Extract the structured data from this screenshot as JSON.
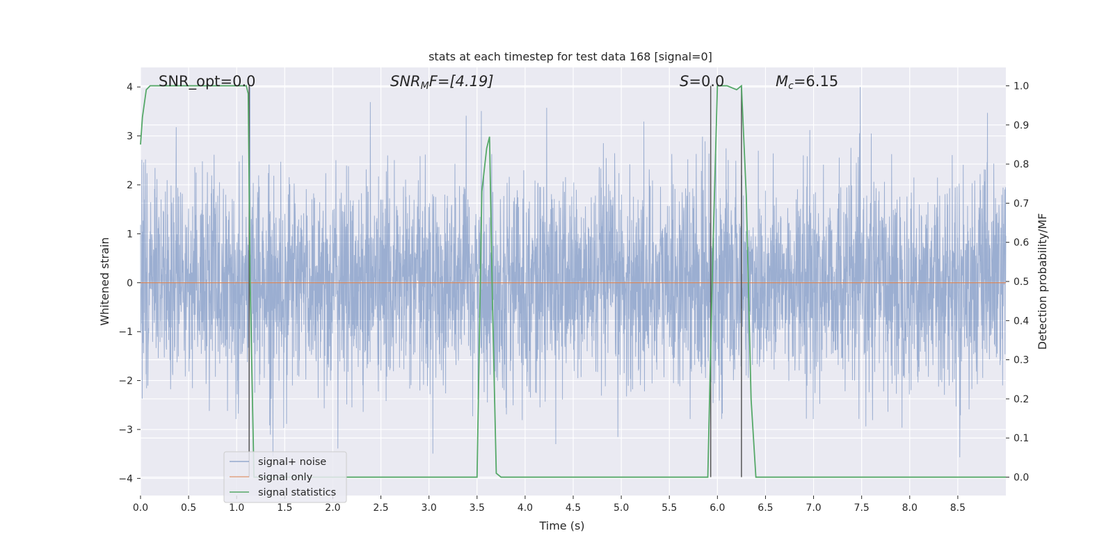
{
  "chart_data": {
    "type": "line",
    "title": "stats at each timestep for test data 168 [signal=0]",
    "xlabel": "Time (s)",
    "ylabel_left": "Whitened strain",
    "ylabel_right": "Detection probability/MF",
    "xlim": [
      0,
      9.0
    ],
    "ylim_left": [
      -4.35,
      4.4
    ],
    "ylim_right": [
      -0.047,
      1.047
    ],
    "x_ticks": [
      "0.0",
      "0.5",
      "1.0",
      "1.5",
      "2.0",
      "2.5",
      "3.0",
      "3.5",
      "4.0",
      "4.5",
      "5.0",
      "5.5",
      "6.0",
      "6.5",
      "7.0",
      "7.5",
      "8.0",
      "8.5"
    ],
    "y_ticks_left": [
      "4",
      "3",
      "2",
      "1",
      "0",
      "−1",
      "−2",
      "−3",
      "−4"
    ],
    "y_ticks_right": [
      "1.0",
      "0.9",
      "0.8",
      "0.7",
      "0.6",
      "0.5",
      "0.4",
      "0.3",
      "0.2",
      "0.1",
      "0.0"
    ],
    "annotations": {
      "snr_opt": "SNR_opt=0.0",
      "snr_mf_main": "SNR",
      "snr_mf_sub": "M",
      "snr_mf_tail": "F=[4.19]",
      "s_main": "S",
      "s_tail": "=0.0",
      "mc_main": "M",
      "mc_sub": "c",
      "mc_tail": "=6.15"
    },
    "grid": true,
    "legend_position": "lower-left",
    "series": [
      {
        "name": "signal+ noise",
        "axis": "left",
        "color": "#4c72b0",
        "description_of_values": "whitened noise, roughly Gaussian, amplitude within about -3.9 to 4.0"
      },
      {
        "name": "signal only",
        "axis": "left",
        "color": "#dd8452",
        "x": [
          0,
          9.0
        ],
        "y": [
          0,
          0
        ]
      },
      {
        "name": "signal statistics",
        "axis": "right",
        "color": "#55a868",
        "x": [
          0.0,
          0.02,
          0.06,
          0.1,
          0.2,
          1.0,
          1.1,
          1.12,
          1.14,
          1.18,
          1.25,
          1.5,
          2.0,
          2.5,
          3.0,
          3.45,
          3.5,
          3.55,
          3.6,
          3.63,
          3.66,
          3.7,
          3.75,
          4.0,
          5.0,
          5.85,
          5.9,
          5.95,
          6.0,
          6.1,
          6.2,
          6.25,
          6.3,
          6.35,
          6.4,
          7.0,
          8.0,
          9.0
        ],
        "y": [
          0.85,
          0.92,
          0.99,
          1.0,
          1.0,
          1.0,
          1.0,
          0.98,
          0.5,
          0.0,
          0.0,
          0.0,
          0.0,
          0.0,
          0.0,
          0.0,
          0.0,
          0.73,
          0.84,
          0.87,
          0.45,
          0.01,
          0.0,
          0.0,
          0.0,
          0.0,
          0.0,
          0.55,
          1.0,
          1.0,
          0.99,
          1.0,
          0.72,
          0.2,
          0.0,
          0.0,
          0.0,
          0.0
        ]
      }
    ],
    "vertical_markers": [
      {
        "x": 1.13,
        "color": "#555555"
      },
      {
        "x": 5.93,
        "color": "#555555"
      },
      {
        "x": 6.25,
        "color": "#555555"
      }
    ]
  }
}
